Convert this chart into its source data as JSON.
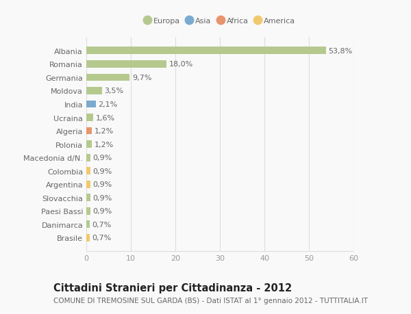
{
  "countries": [
    "Albania",
    "Romania",
    "Germania",
    "Moldova",
    "India",
    "Ucraina",
    "Algeria",
    "Polonia",
    "Macedonia d/N.",
    "Colombia",
    "Argentina",
    "Slovacchia",
    "Paesi Bassi",
    "Danimarca",
    "Brasile"
  ],
  "values": [
    53.8,
    18.0,
    9.7,
    3.5,
    2.1,
    1.6,
    1.2,
    1.2,
    0.9,
    0.9,
    0.9,
    0.9,
    0.9,
    0.7,
    0.7
  ],
  "labels": [
    "53,8%",
    "18,0%",
    "9,7%",
    "3,5%",
    "2,1%",
    "1,6%",
    "1,2%",
    "1,2%",
    "0,9%",
    "0,9%",
    "0,9%",
    "0,9%",
    "0,9%",
    "0,7%",
    "0,7%"
  ],
  "continents": [
    "Europa",
    "Europa",
    "Europa",
    "Europa",
    "Asia",
    "Europa",
    "Africa",
    "Europa",
    "Europa",
    "America",
    "America",
    "Europa",
    "Europa",
    "Europa",
    "America"
  ],
  "colors": {
    "Europa": "#b5c98e",
    "Asia": "#7aaacf",
    "Africa": "#e8956d",
    "America": "#f0c96e"
  },
  "legend_order": [
    "Europa",
    "Asia",
    "Africa",
    "America"
  ],
  "title": "Cittadini Stranieri per Cittadinanza - 2012",
  "subtitle": "COMUNE DI TREMOSINE SUL GARDA (BS) - Dati ISTAT al 1° gennaio 2012 - TUTTITALIA.IT",
  "xlim": [
    0,
    60
  ],
  "xticks": [
    0,
    10,
    20,
    30,
    40,
    50,
    60
  ],
  "background_color": "#f9f9f9",
  "grid_color": "#dddddd",
  "bar_height": 0.55,
  "label_fontsize": 8,
  "tick_fontsize": 8,
  "title_fontsize": 10.5,
  "subtitle_fontsize": 7.5
}
